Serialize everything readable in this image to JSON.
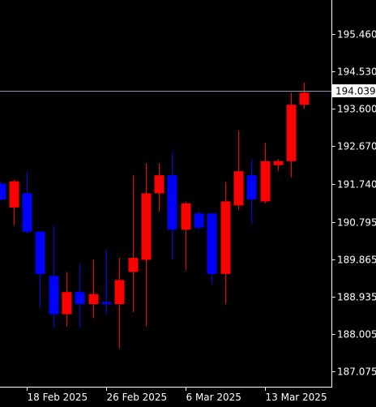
{
  "chart_data": {
    "type": "candlestick",
    "title": "",
    "xlabel": "",
    "ylabel": "",
    "ylim": [
      186.7,
      196.3
    ],
    "y_ticks": [
      195.46,
      194.53,
      193.6,
      192.67,
      191.74,
      190.795,
      189.865,
      188.935,
      188.005,
      187.075
    ],
    "y_tick_labels": [
      "195.460",
      "194.530",
      "193.600",
      "192.670",
      "191.740",
      "190.795",
      "189.865",
      "188.935",
      "188.005",
      "187.075"
    ],
    "x_tick_labels": [
      {
        "label": "18 Feb 2025",
        "index": 2
      },
      {
        "label": "26 Feb 2025",
        "index": 8
      },
      {
        "label": "6 Mar 2025",
        "index": 14
      },
      {
        "label": "13 Mar 2025",
        "index": 20
      }
    ],
    "current_price": 194.039,
    "current_price_label": "194.039",
    "colors": {
      "up": "#ff0000",
      "down": "#0000ff",
      "wick_up": "#ff0000",
      "wick_down": "#0000ff",
      "background": "#000000",
      "axis": "#ffffff",
      "price_line": "#8c96b4"
    },
    "candles": [
      {
        "open": 191.74,
        "high": 191.8,
        "low": 191.3,
        "close": 191.35
      },
      {
        "open": 191.15,
        "high": 191.83,
        "low": 190.7,
        "close": 191.8
      },
      {
        "open": 191.5,
        "high": 192.05,
        "low": 190.5,
        "close": 190.55
      },
      {
        "open": 190.55,
        "high": 190.56,
        "low": 188.65,
        "close": 189.5
      },
      {
        "open": 189.45,
        "high": 190.7,
        "low": 188.15,
        "close": 188.5
      },
      {
        "open": 188.5,
        "high": 189.55,
        "low": 188.2,
        "close": 189.05
      },
      {
        "open": 189.05,
        "high": 189.75,
        "low": 188.15,
        "close": 188.75
      },
      {
        "open": 188.75,
        "high": 189.85,
        "low": 188.4,
        "close": 189.0
      },
      {
        "open": 188.8,
        "high": 190.1,
        "low": 188.5,
        "close": 188.75
      },
      {
        "open": 188.75,
        "high": 189.9,
        "low": 187.65,
        "close": 189.35
      },
      {
        "open": 189.55,
        "high": 191.95,
        "low": 188.55,
        "close": 189.9
      },
      {
        "open": 189.85,
        "high": 192.25,
        "low": 188.2,
        "close": 191.5
      },
      {
        "open": 191.5,
        "high": 192.25,
        "low": 191.05,
        "close": 191.95
      },
      {
        "open": 191.95,
        "high": 192.5,
        "low": 189.85,
        "close": 190.6
      },
      {
        "open": 190.6,
        "high": 191.3,
        "low": 189.6,
        "close": 191.25
      },
      {
        "open": 191.0,
        "high": 191.05,
        "low": 190.6,
        "close": 190.65
      },
      {
        "open": 191.0,
        "high": 191.0,
        "low": 189.25,
        "close": 189.5
      },
      {
        "open": 189.5,
        "high": 191.78,
        "low": 188.75,
        "close": 191.3
      },
      {
        "open": 191.2,
        "high": 193.05,
        "low": 191.1,
        "close": 192.05
      },
      {
        "open": 191.95,
        "high": 192.35,
        "low": 190.75,
        "close": 191.35
      },
      {
        "open": 191.3,
        "high": 192.75,
        "low": 191.25,
        "close": 192.3
      },
      {
        "open": 192.2,
        "high": 192.35,
        "low": 192.05,
        "close": 192.3
      },
      {
        "open": 192.3,
        "high": 194.0,
        "low": 191.9,
        "close": 193.7
      },
      {
        "open": 193.7,
        "high": 194.25,
        "low": 193.6,
        "close": 194.0
      }
    ]
  }
}
